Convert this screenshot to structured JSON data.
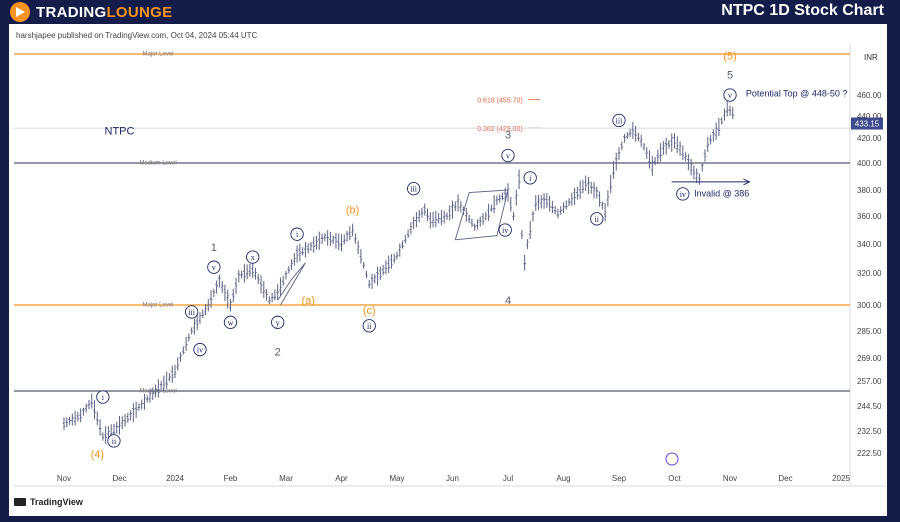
{
  "banner": {
    "logo_text_main": "TRADING",
    "logo_text_accent": "LOUNGE",
    "chart_title": "NTPC 1D Stock Chart"
  },
  "publisher": "harshjapee published on TradingView.com, Oct 04, 2024 05:44 UTC",
  "tv_brand": "TradingView",
  "colors": {
    "orange": "#f7931e",
    "navy": "#1f2a6b",
    "wave_blue": "#3d4a8f",
    "bar_grey": "#5b6285",
    "fib_red": "#e8684a",
    "grey_text": "#555a6e"
  },
  "chart_data": {
    "type": "line",
    "symbol": "NTPC",
    "currency": "INR",
    "last_price_label": "433.15",
    "x_tick_labels": [
      "Nov",
      "Dec",
      "2024",
      "Feb",
      "Mar",
      "Apr",
      "May",
      "Jun",
      "Jul",
      "Aug",
      "Sep",
      "Oct",
      "Nov",
      "Dec",
      "2025"
    ],
    "y_ticks": [
      {
        "v": 460,
        "label": "460.00"
      },
      {
        "v": 440,
        "label": "440.00"
      },
      {
        "v": 420,
        "label": "420.00"
      },
      {
        "v": 400,
        "label": "400.00"
      },
      {
        "v": 380,
        "label": "380.00"
      },
      {
        "v": 360,
        "label": "360.00"
      },
      {
        "v": 340,
        "label": "340.00"
      },
      {
        "v": 320,
        "label": "320.00"
      },
      {
        "v": 300,
        "label": "300.00"
      },
      {
        "v": 285,
        "label": "285.00"
      },
      {
        "v": 269,
        "label": "269.00"
      },
      {
        "v": 257,
        "label": "257.00"
      },
      {
        "v": 244.5,
        "label": "244.50"
      },
      {
        "v": 232.5,
        "label": "232.50"
      },
      {
        "v": 222.5,
        "label": "222.50"
      }
    ],
    "levels": [
      {
        "label": "Major Level",
        "v": 490,
        "style": "orange"
      },
      {
        "label": "Medium Level",
        "v": 400,
        "style": "grey"
      },
      {
        "label": "Major Level",
        "v": 300,
        "style": "orange"
      },
      {
        "label": "Medium Level",
        "v": 252,
        "style": "grey"
      }
    ],
    "fib_labels": [
      {
        "text": "0.618 (455.70)",
        "v": 455.7
      },
      {
        "text": "0.382 (429.00)",
        "v": 429
      }
    ],
    "price_path": [
      {
        "m": 0,
        "v": 236
      },
      {
        "m": 0.3,
        "v": 240
      },
      {
        "m": 0.5,
        "v": 247
      },
      {
        "m": 0.7,
        "v": 230
      },
      {
        "m": 0.9,
        "v": 233
      },
      {
        "m": 1.2,
        "v": 240
      },
      {
        "m": 1.5,
        "v": 248
      },
      {
        "m": 1.8,
        "v": 256
      },
      {
        "m": 2.0,
        "v": 262
      },
      {
        "m": 2.3,
        "v": 285
      },
      {
        "m": 2.6,
        "v": 300
      },
      {
        "m": 2.8,
        "v": 315
      },
      {
        "m": 3.0,
        "v": 300
      },
      {
        "m": 3.15,
        "v": 318
      },
      {
        "m": 3.4,
        "v": 323
      },
      {
        "m": 3.7,
        "v": 303
      },
      {
        "m": 3.85,
        "v": 308
      },
      {
        "m": 4.2,
        "v": 333
      },
      {
        "m": 4.4,
        "v": 337
      },
      {
        "m": 4.7,
        "v": 345
      },
      {
        "m": 5.0,
        "v": 341
      },
      {
        "m": 5.2,
        "v": 350
      },
      {
        "m": 5.5,
        "v": 313
      },
      {
        "m": 5.7,
        "v": 320
      },
      {
        "m": 6.0,
        "v": 332
      },
      {
        "m": 6.3,
        "v": 355
      },
      {
        "m": 6.5,
        "v": 365
      },
      {
        "m": 6.6,
        "v": 357
      },
      {
        "m": 6.9,
        "v": 360
      },
      {
        "m": 7.1,
        "v": 370
      },
      {
        "m": 7.4,
        "v": 352
      },
      {
        "m": 7.6,
        "v": 360
      },
      {
        "m": 7.8,
        "v": 372
      },
      {
        "m": 8.0,
        "v": 378
      },
      {
        "m": 8.1,
        "v": 360
      },
      {
        "m": 8.2,
        "v": 388
      },
      {
        "m": 8.28,
        "v": 322
      },
      {
        "m": 8.35,
        "v": 340
      },
      {
        "m": 8.5,
        "v": 370
      },
      {
        "m": 8.7,
        "v": 372
      },
      {
        "m": 8.9,
        "v": 362
      },
      {
        "m": 9.2,
        "v": 375
      },
      {
        "m": 9.4,
        "v": 385
      },
      {
        "m": 9.6,
        "v": 378
      },
      {
        "m": 9.75,
        "v": 363
      },
      {
        "m": 9.9,
        "v": 395
      },
      {
        "m": 10.1,
        "v": 420
      },
      {
        "m": 10.25,
        "v": 427
      },
      {
        "m": 10.4,
        "v": 418
      },
      {
        "m": 10.6,
        "v": 398
      },
      {
        "m": 10.8,
        "v": 412
      },
      {
        "m": 11.0,
        "v": 418
      },
      {
        "m": 11.2,
        "v": 405
      },
      {
        "m": 11.35,
        "v": 393
      },
      {
        "m": 11.45,
        "v": 388
      },
      {
        "m": 11.6,
        "v": 415
      },
      {
        "m": 11.8,
        "v": 430
      },
      {
        "m": 11.95,
        "v": 447
      },
      {
        "m": 12.05,
        "v": 443
      },
      {
        "m": 12.1,
        "v": 433
      }
    ],
    "annotations": [
      {
        "text": "NTPC",
        "m": 1.0,
        "v": 427,
        "color": "navy",
        "kind": "text"
      },
      {
        "text": "(4)",
        "m": 0.6,
        "v": 222,
        "color": "orange",
        "kind": "text"
      },
      {
        "text": "i",
        "m": 0.7,
        "v": 249,
        "color": "navy",
        "kind": "circle"
      },
      {
        "text": "ii",
        "m": 0.9,
        "v": 228,
        "color": "navy",
        "kind": "circle"
      },
      {
        "text": "iii",
        "m": 2.3,
        "v": 296,
        "color": "navy",
        "kind": "circle"
      },
      {
        "text": "iv",
        "m": 2.45,
        "v": 274,
        "color": "navy",
        "kind": "circle"
      },
      {
        "text": "1",
        "m": 2.7,
        "v": 338,
        "color": "grey",
        "kind": "text"
      },
      {
        "text": "v",
        "m": 2.7,
        "v": 324,
        "color": "navy",
        "kind": "circle"
      },
      {
        "text": "w",
        "m": 3.0,
        "v": 290,
        "color": "navy",
        "kind": "circle"
      },
      {
        "text": "x",
        "m": 3.4,
        "v": 331,
        "color": "navy",
        "kind": "circle"
      },
      {
        "text": "y",
        "m": 3.85,
        "v": 290,
        "color": "navy",
        "kind": "circle"
      },
      {
        "text": "2",
        "m": 3.85,
        "v": 273,
        "color": "grey",
        "kind": "text"
      },
      {
        "text": "(a)",
        "m": 4.4,
        "v": 303,
        "color": "orange",
        "kind": "text"
      },
      {
        "text": "i",
        "m": 4.2,
        "v": 347,
        "color": "navy",
        "kind": "circle"
      },
      {
        "text": "(b)",
        "m": 5.2,
        "v": 365,
        "color": "orange",
        "kind": "text"
      },
      {
        "text": "(c)",
        "m": 5.5,
        "v": 297,
        "color": "orange",
        "kind": "text"
      },
      {
        "text": "ii",
        "m": 5.5,
        "v": 288,
        "color": "navy",
        "kind": "circle"
      },
      {
        "text": "iii",
        "m": 6.3,
        "v": 381,
        "color": "navy",
        "kind": "circle"
      },
      {
        "text": "3",
        "m": 8.0,
        "v": 423,
        "color": "grey",
        "kind": "text"
      },
      {
        "text": "v",
        "m": 8.0,
        "v": 406,
        "color": "navy",
        "kind": "circle"
      },
      {
        "text": "iv",
        "m": 7.95,
        "v": 350,
        "color": "navy",
        "kind": "circle"
      },
      {
        "text": "4",
        "m": 8.0,
        "v": 303,
        "color": "grey",
        "kind": "text"
      },
      {
        "text": "i",
        "m": 8.4,
        "v": 389,
        "color": "navy",
        "kind": "circle"
      },
      {
        "text": "ii",
        "m": 9.6,
        "v": 358,
        "color": "navy",
        "kind": "circle"
      },
      {
        "text": "iii",
        "m": 10.0,
        "v": 436,
        "color": "navy",
        "kind": "circle"
      },
      {
        "text": "iv",
        "m": 11.15,
        "v": 377,
        "color": "navy",
        "kind": "circle"
      },
      {
        "text": "Invalid @ 386",
        "m": 11.85,
        "v": 378,
        "color": "navy",
        "kind": "text"
      },
      {
        "text": "(5)",
        "m": 12.0,
        "v": 489,
        "color": "orange",
        "kind": "text"
      },
      {
        "text": "5",
        "m": 12.0,
        "v": 475,
        "color": "grey",
        "kind": "text"
      },
      {
        "text": "v",
        "m": 12.0,
        "v": 460,
        "color": "navy",
        "kind": "circle"
      },
      {
        "text": "Potential Top @ 448-50 ?",
        "m": 13.2,
        "v": 462,
        "color": "navy",
        "kind": "text"
      }
    ]
  }
}
